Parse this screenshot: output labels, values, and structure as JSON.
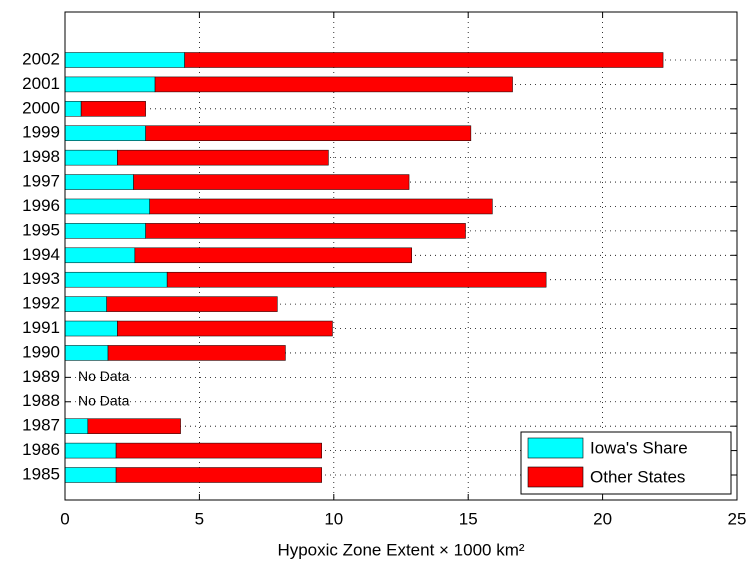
{
  "chart_data": {
    "type": "stacked-barh",
    "x_label": "Hypoxic Zone Extent × 1000 km²",
    "categories": [
      "1985",
      "1986",
      "1987",
      "1988",
      "1989",
      "1990",
      "1991",
      "1992",
      "1993",
      "1994",
      "1995",
      "1996",
      "1997",
      "1998",
      "1999",
      "2000",
      "2001",
      "2002"
    ],
    "series": [
      {
        "name": "Iowa's Share",
        "color": "#00ffff",
        "values": [
          1.9,
          1.9,
          0.85,
          null,
          null,
          1.6,
          1.95,
          1.55,
          3.8,
          2.6,
          3.0,
          3.15,
          2.55,
          1.95,
          3.0,
          0.6,
          3.35,
          4.45
        ]
      },
      {
        "name": "Other States",
        "color": "#ff0000",
        "values": [
          7.65,
          7.65,
          3.45,
          null,
          null,
          6.6,
          8.0,
          6.35,
          14.1,
          10.3,
          11.9,
          12.75,
          10.25,
          7.85,
          12.1,
          2.4,
          13.3,
          17.8
        ]
      }
    ],
    "annotations": [
      {
        "category": "1989",
        "text": "No Data"
      },
      {
        "category": "1988",
        "text": "No Data"
      }
    ],
    "xlim": [
      0,
      25
    ],
    "xticks": [
      0,
      5,
      10,
      15,
      20,
      25
    ],
    "grid": true,
    "legend": "lower-right"
  }
}
